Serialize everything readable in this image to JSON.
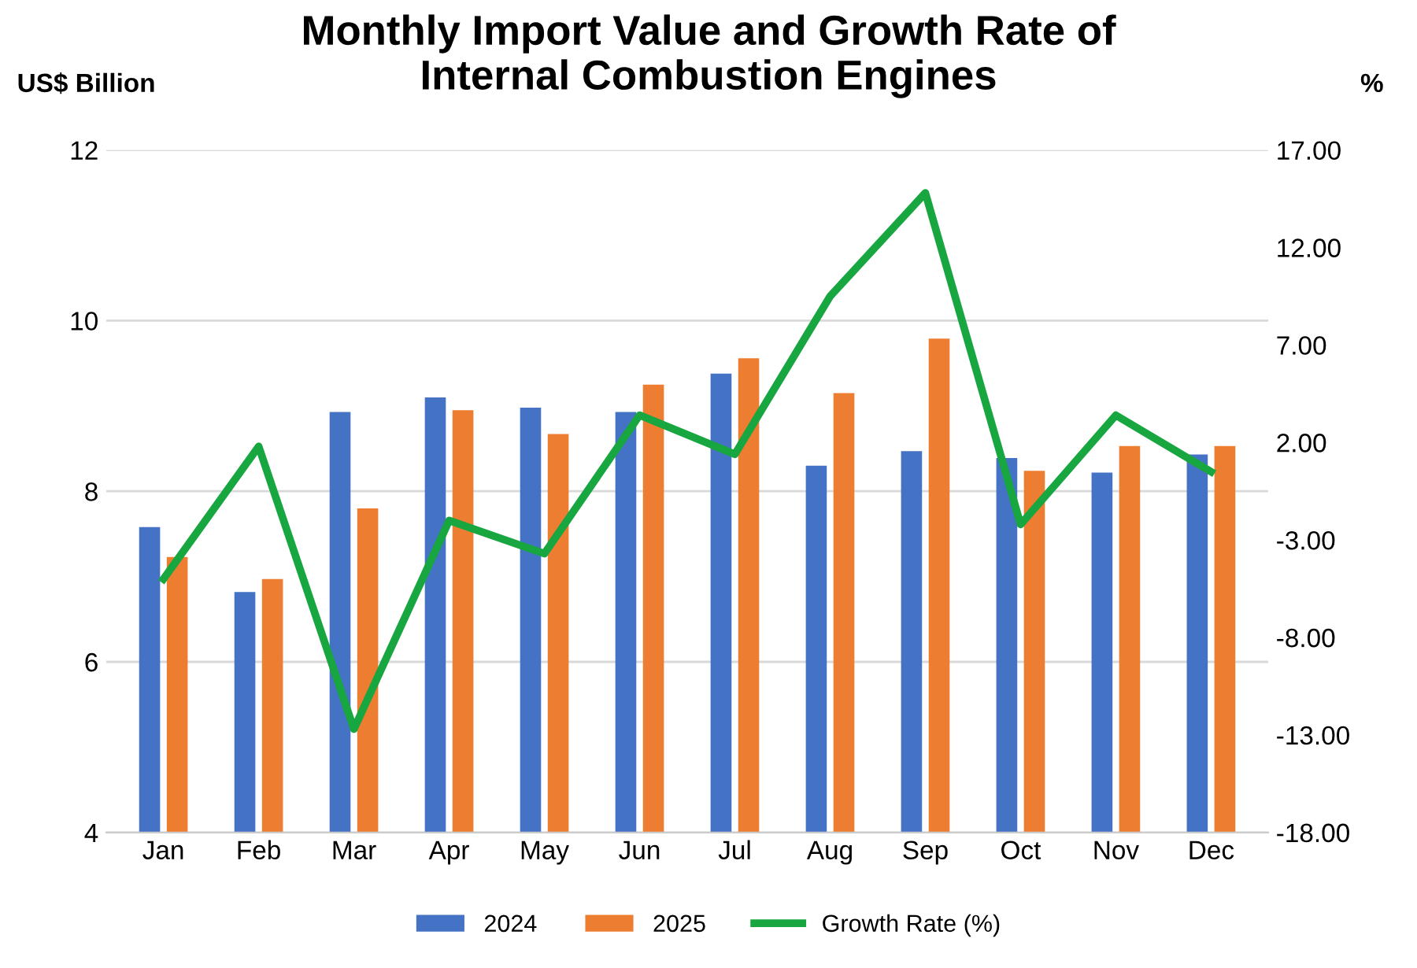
{
  "chart_data": {
    "type": "bar",
    "title": "Monthly Import Value and Growth Rate of\nInternal Combustion Engines",
    "ylabel": "US$ Billion",
    "y2label": "%",
    "categories": [
      "Jan",
      "Feb",
      "Mar",
      "Apr",
      "May",
      "Jun",
      "Jul",
      "Aug",
      "Sep",
      "Oct",
      "Nov",
      "Dec"
    ],
    "series": [
      {
        "name": "2024",
        "color": "#4472c4",
        "values": [
          7.58,
          6.82,
          8.93,
          9.1,
          8.98,
          8.93,
          9.38,
          8.3,
          8.47,
          8.39,
          8.22,
          8.43
        ]
      },
      {
        "name": "2025",
        "color": "#ed7d31",
        "values": [
          7.23,
          6.97,
          7.8,
          8.95,
          8.67,
          9.25,
          9.56,
          9.15,
          9.79,
          8.24,
          8.53,
          8.53
        ]
      },
      {
        "name": "Growth Rate (%)",
        "type": "line",
        "axis": "y2",
        "color": "#18a640",
        "values": [
          -5.0,
          1.8,
          -12.7,
          -2.0,
          -3.7,
          3.4,
          1.4,
          9.5,
          14.8,
          -2.2,
          3.4,
          0.5
        ]
      }
    ],
    "ylim": [
      4,
      12
    ],
    "yticks": [
      4,
      6,
      8,
      10,
      12
    ],
    "y2lim": [
      -18,
      17
    ],
    "y2ticks": [
      {
        "value": -18,
        "label": "-18.00"
      },
      {
        "value": -13,
        "label": "-13.00"
      },
      {
        "value": -8,
        "label": "-8.00"
      },
      {
        "value": -3,
        "label": "-3.00"
      },
      {
        "value": 2,
        "label": "2.00"
      },
      {
        "value": 7,
        "label": "7.00"
      },
      {
        "value": 12,
        "label": "12.00"
      },
      {
        "value": 17,
        "label": "17.00"
      }
    ],
    "grid": "y",
    "legend": "bottom"
  }
}
